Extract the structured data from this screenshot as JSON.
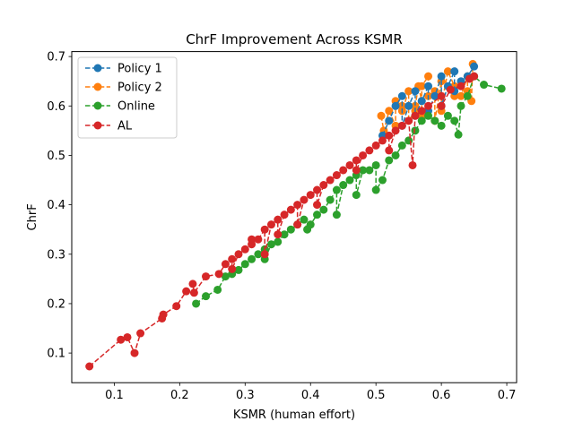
{
  "chart_data": {
    "type": "scatter",
    "title": "ChrF Improvement Across KSMR",
    "xlabel": "KSMR (human effort)",
    "ylabel": "ChrF",
    "xlim": [
      0.035,
      0.715
    ],
    "ylim": [
      0.04,
      0.71
    ],
    "xticks": [
      0.1,
      0.2,
      0.3,
      0.4,
      0.5,
      0.6,
      0.7
    ],
    "yticks": [
      0.1,
      0.2,
      0.3,
      0.4,
      0.5,
      0.6,
      0.7
    ],
    "grid": false,
    "legend_position": "upper-left",
    "line_style": "dashed",
    "marker": "circle",
    "series": [
      {
        "name": "Policy 1",
        "color": "#1f77b4",
        "points": [
          [
            0.51,
            0.54
          ],
          [
            0.52,
            0.57
          ],
          [
            0.53,
            0.6
          ],
          [
            0.54,
            0.62
          ],
          [
            0.55,
            0.6
          ],
          [
            0.56,
            0.63
          ],
          [
            0.57,
            0.61
          ],
          [
            0.58,
            0.64
          ],
          [
            0.59,
            0.62
          ],
          [
            0.6,
            0.66
          ],
          [
            0.61,
            0.64
          ],
          [
            0.62,
            0.67
          ],
          [
            0.63,
            0.65
          ],
          [
            0.64,
            0.66
          ],
          [
            0.65,
            0.68
          ],
          [
            0.62,
            0.63
          ],
          [
            0.6,
            0.6
          ],
          [
            0.58,
            0.59
          ],
          [
            0.56,
            0.58
          ],
          [
            0.54,
            0.56
          ]
        ]
      },
      {
        "name": "Policy 2",
        "color": "#ff7f0e",
        "points": [
          [
            0.508,
            0.58
          ],
          [
            0.512,
            0.55
          ],
          [
            0.52,
            0.59
          ],
          [
            0.53,
            0.56
          ],
          [
            0.54,
            0.6
          ],
          [
            0.55,
            0.63
          ],
          [
            0.56,
            0.59
          ],
          [
            0.565,
            0.64
          ],
          [
            0.57,
            0.61
          ],
          [
            0.58,
            0.66
          ],
          [
            0.59,
            0.63
          ],
          [
            0.6,
            0.65
          ],
          [
            0.61,
            0.67
          ],
          [
            0.62,
            0.64
          ],
          [
            0.63,
            0.62
          ],
          [
            0.64,
            0.66
          ],
          [
            0.648,
            0.685
          ],
          [
            0.6,
            0.59
          ],
          [
            0.59,
            0.57
          ],
          [
            0.57,
            0.58
          ],
          [
            0.55,
            0.57
          ],
          [
            0.54,
            0.59
          ],
          [
            0.53,
            0.61
          ],
          [
            0.6,
            0.6
          ],
          [
            0.62,
            0.62
          ],
          [
            0.64,
            0.63
          ],
          [
            0.646,
            0.61
          ],
          [
            0.58,
            0.62
          ],
          [
            0.56,
            0.6
          ],
          [
            0.57,
            0.64
          ]
        ]
      },
      {
        "name": "Online",
        "color": "#2ca02c",
        "points": [
          [
            0.225,
            0.2
          ],
          [
            0.24,
            0.215
          ],
          [
            0.258,
            0.228
          ],
          [
            0.27,
            0.255
          ],
          [
            0.28,
            0.26
          ],
          [
            0.29,
            0.268
          ],
          [
            0.3,
            0.28
          ],
          [
            0.31,
            0.29
          ],
          [
            0.32,
            0.3
          ],
          [
            0.33,
            0.31
          ],
          [
            0.34,
            0.32
          ],
          [
            0.35,
            0.325
          ],
          [
            0.36,
            0.34
          ],
          [
            0.37,
            0.35
          ],
          [
            0.38,
            0.36
          ],
          [
            0.39,
            0.37
          ],
          [
            0.4,
            0.36
          ],
          [
            0.41,
            0.38
          ],
          [
            0.42,
            0.39
          ],
          [
            0.43,
            0.41
          ],
          [
            0.44,
            0.43
          ],
          [
            0.45,
            0.44
          ],
          [
            0.46,
            0.45
          ],
          [
            0.47,
            0.46
          ],
          [
            0.48,
            0.47
          ],
          [
            0.49,
            0.47
          ],
          [
            0.5,
            0.48
          ],
          [
            0.51,
            0.45
          ],
          [
            0.52,
            0.49
          ],
          [
            0.53,
            0.5
          ],
          [
            0.54,
            0.52
          ],
          [
            0.55,
            0.53
          ],
          [
            0.56,
            0.55
          ],
          [
            0.57,
            0.57
          ],
          [
            0.58,
            0.58
          ],
          [
            0.59,
            0.57
          ],
          [
            0.6,
            0.56
          ],
          [
            0.61,
            0.58
          ],
          [
            0.62,
            0.57
          ],
          [
            0.626,
            0.542
          ],
          [
            0.63,
            0.6
          ],
          [
            0.64,
            0.62
          ],
          [
            0.65,
            0.66
          ],
          [
            0.665,
            0.643
          ],
          [
            0.692,
            0.635
          ],
          [
            0.395,
            0.35
          ],
          [
            0.44,
            0.38
          ],
          [
            0.47,
            0.42
          ],
          [
            0.5,
            0.43
          ],
          [
            0.33,
            0.29
          ]
        ]
      },
      {
        "name": "AL",
        "color": "#d62728",
        "points": [
          [
            0.062,
            0.073
          ],
          [
            0.11,
            0.127
          ],
          [
            0.12,
            0.132
          ],
          [
            0.131,
            0.1
          ],
          [
            0.14,
            0.14
          ],
          [
            0.173,
            0.17
          ],
          [
            0.175,
            0.178
          ],
          [
            0.195,
            0.195
          ],
          [
            0.21,
            0.225
          ],
          [
            0.22,
            0.24
          ],
          [
            0.222,
            0.222
          ],
          [
            0.24,
            0.255
          ],
          [
            0.26,
            0.26
          ],
          [
            0.27,
            0.28
          ],
          [
            0.28,
            0.29
          ],
          [
            0.29,
            0.3
          ],
          [
            0.3,
            0.31
          ],
          [
            0.31,
            0.32
          ],
          [
            0.32,
            0.33
          ],
          [
            0.33,
            0.35
          ],
          [
            0.34,
            0.36
          ],
          [
            0.35,
            0.37
          ],
          [
            0.36,
            0.38
          ],
          [
            0.37,
            0.39
          ],
          [
            0.38,
            0.4
          ],
          [
            0.39,
            0.41
          ],
          [
            0.4,
            0.42
          ],
          [
            0.41,
            0.43
          ],
          [
            0.42,
            0.44
          ],
          [
            0.43,
            0.45
          ],
          [
            0.44,
            0.46
          ],
          [
            0.45,
            0.47
          ],
          [
            0.46,
            0.48
          ],
          [
            0.47,
            0.49
          ],
          [
            0.48,
            0.5
          ],
          [
            0.49,
            0.51
          ],
          [
            0.5,
            0.52
          ],
          [
            0.51,
            0.53
          ],
          [
            0.52,
            0.54
          ],
          [
            0.53,
            0.55
          ],
          [
            0.54,
            0.56
          ],
          [
            0.55,
            0.57
          ],
          [
            0.56,
            0.58
          ],
          [
            0.57,
            0.59
          ],
          [
            0.58,
            0.6
          ],
          [
            0.6,
            0.62
          ],
          [
            0.614,
            0.633
          ],
          [
            0.63,
            0.64
          ],
          [
            0.643,
            0.655
          ],
          [
            0.65,
            0.66
          ],
          [
            0.556,
            0.48
          ],
          [
            0.6,
            0.6
          ],
          [
            0.31,
            0.33
          ],
          [
            0.35,
            0.34
          ],
          [
            0.41,
            0.4
          ],
          [
            0.47,
            0.47
          ],
          [
            0.52,
            0.51
          ],
          [
            0.38,
            0.36
          ],
          [
            0.28,
            0.27
          ],
          [
            0.33,
            0.3
          ]
        ]
      }
    ]
  }
}
